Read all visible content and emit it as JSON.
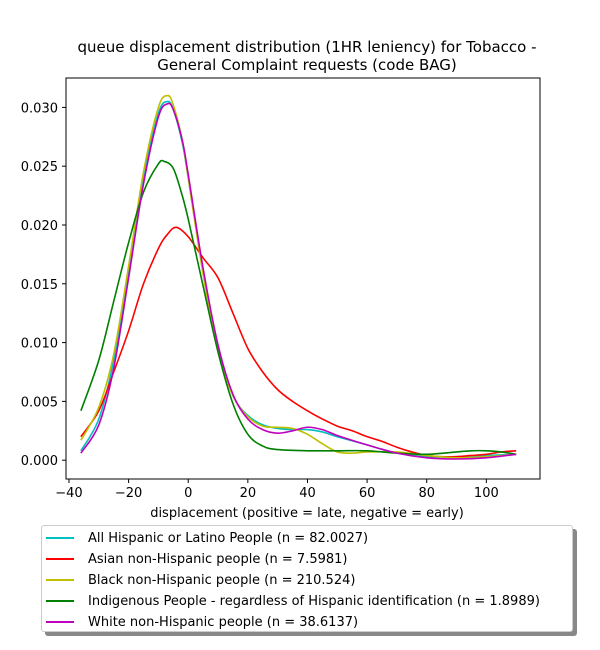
{
  "chart_data": {
    "type": "line",
    "title": "queue displacement distribution (1HR leniency) for Tobacco -\nGeneral Complaint  requests (code BAG)",
    "xlabel": "displacement (positive = late, negative = early)",
    "ylabel": "",
    "xlim": [
      -41,
      118
    ],
    "ylim": [
      -0.0016,
      0.0325
    ],
    "xticks": [
      -40,
      -20,
      0,
      20,
      40,
      60,
      80,
      100
    ],
    "yticks": [
      0.0,
      0.005,
      0.01,
      0.015,
      0.02,
      0.025,
      0.03
    ],
    "xtick_labels": [
      "−40",
      "−20",
      "0",
      "20",
      "40",
      "60",
      "80",
      "100"
    ],
    "ytick_labels": [
      "0.000",
      "0.005",
      "0.010",
      "0.015",
      "0.020",
      "0.025",
      "0.030"
    ],
    "grid": false,
    "legend_position": "below",
    "series": [
      {
        "name": "All Hispanic or Latino People (n = 82.0027)",
        "color": "#00bfbf",
        "points": [
          [
            -36,
            0.0008
          ],
          [
            -30,
            0.0035
          ],
          [
            -25,
            0.0085
          ],
          [
            -20,
            0.016
          ],
          [
            -15,
            0.024
          ],
          [
            -10,
            0.0295
          ],
          [
            -7,
            0.0305
          ],
          [
            -5,
            0.0298
          ],
          [
            -2,
            0.027
          ],
          [
            0,
            0.024
          ],
          [
            5,
            0.016
          ],
          [
            10,
            0.0095
          ],
          [
            15,
            0.0055
          ],
          [
            20,
            0.0038
          ],
          [
            25,
            0.003
          ],
          [
            30,
            0.0027
          ],
          [
            35,
            0.0026
          ],
          [
            40,
            0.0026
          ],
          [
            45,
            0.0024
          ],
          [
            50,
            0.002
          ],
          [
            60,
            0.0013
          ],
          [
            70,
            0.0006
          ],
          [
            80,
            0.0003
          ],
          [
            90,
            0.0003
          ],
          [
            100,
            0.0004
          ],
          [
            110,
            0.0005
          ]
        ]
      },
      {
        "name": "Asian non-Hispanic people (n = 7.5981)",
        "color": "#ff0000",
        "points": [
          [
            -36,
            0.002
          ],
          [
            -30,
            0.0042
          ],
          [
            -25,
            0.0075
          ],
          [
            -20,
            0.011
          ],
          [
            -15,
            0.015
          ],
          [
            -10,
            0.018
          ],
          [
            -7,
            0.0192
          ],
          [
            -4,
            0.0198
          ],
          [
            0,
            0.019
          ],
          [
            5,
            0.0172
          ],
          [
            10,
            0.0155
          ],
          [
            15,
            0.0125
          ],
          [
            20,
            0.0095
          ],
          [
            25,
            0.0075
          ],
          [
            30,
            0.006
          ],
          [
            35,
            0.005
          ],
          [
            40,
            0.0042
          ],
          [
            45,
            0.0035
          ],
          [
            50,
            0.0029
          ],
          [
            55,
            0.0025
          ],
          [
            60,
            0.002
          ],
          [
            65,
            0.0016
          ],
          [
            70,
            0.0011
          ],
          [
            75,
            0.0007
          ],
          [
            80,
            0.0004
          ],
          [
            85,
            0.0003
          ],
          [
            90,
            0.0003
          ],
          [
            95,
            0.0004
          ],
          [
            100,
            0.0005
          ],
          [
            105,
            0.0007
          ],
          [
            110,
            0.0008
          ]
        ]
      },
      {
        "name": "Black non-Hispanic people (n = 210.524)",
        "color": "#bfbf00",
        "points": [
          [
            -36,
            0.0017
          ],
          [
            -30,
            0.0045
          ],
          [
            -25,
            0.009
          ],
          [
            -20,
            0.0165
          ],
          [
            -15,
            0.0245
          ],
          [
            -10,
            0.03
          ],
          [
            -7,
            0.031
          ],
          [
            -5,
            0.0302
          ],
          [
            -2,
            0.0272
          ],
          [
            0,
            0.024
          ],
          [
            5,
            0.0158
          ],
          [
            10,
            0.0092
          ],
          [
            15,
            0.0055
          ],
          [
            20,
            0.0037
          ],
          [
            25,
            0.0029
          ],
          [
            30,
            0.0028
          ],
          [
            35,
            0.0027
          ],
          [
            40,
            0.0022
          ],
          [
            45,
            0.0014
          ],
          [
            50,
            0.0007
          ],
          [
            55,
            0.0006
          ],
          [
            60,
            0.0007
          ],
          [
            70,
            0.0007
          ],
          [
            80,
            0.0004
          ],
          [
            90,
            0.0002
          ],
          [
            100,
            0.0003
          ],
          [
            110,
            0.0005
          ]
        ]
      },
      {
        "name": "Indigenous People - regardless of Hispanic identification (n = 1.8989)",
        "color": "#008000",
        "points": [
          [
            -36,
            0.0042
          ],
          [
            -30,
            0.0085
          ],
          [
            -25,
            0.0135
          ],
          [
            -20,
            0.0185
          ],
          [
            -15,
            0.0228
          ],
          [
            -10,
            0.0252
          ],
          [
            -8,
            0.0254
          ],
          [
            -5,
            0.0248
          ],
          [
            -2,
            0.0225
          ],
          [
            0,
            0.0205
          ],
          [
            5,
            0.0148
          ],
          [
            10,
            0.0092
          ],
          [
            15,
            0.0048
          ],
          [
            20,
            0.0022
          ],
          [
            25,
            0.0012
          ],
          [
            30,
            0.0009
          ],
          [
            40,
            0.0008
          ],
          [
            50,
            0.0008
          ],
          [
            60,
            0.0008
          ],
          [
            70,
            0.0006
          ],
          [
            80,
            0.0005
          ],
          [
            90,
            0.0007
          ],
          [
            95,
            0.0008
          ],
          [
            100,
            0.0008
          ],
          [
            105,
            0.0007
          ],
          [
            110,
            0.0005
          ]
        ]
      },
      {
        "name": "White non-Hispanic people (n = 38.6137)",
        "color": "#bf00bf",
        "points": [
          [
            -36,
            0.0006
          ],
          [
            -30,
            0.003
          ],
          [
            -25,
            0.0078
          ],
          [
            -20,
            0.0155
          ],
          [
            -15,
            0.0235
          ],
          [
            -10,
            0.0292
          ],
          [
            -7,
            0.0303
          ],
          [
            -5,
            0.0298
          ],
          [
            -2,
            0.0272
          ],
          [
            0,
            0.0243
          ],
          [
            5,
            0.0163
          ],
          [
            10,
            0.0098
          ],
          [
            15,
            0.0056
          ],
          [
            20,
            0.0035
          ],
          [
            25,
            0.0026
          ],
          [
            30,
            0.0023
          ],
          [
            35,
            0.0025
          ],
          [
            40,
            0.0028
          ],
          [
            45,
            0.0026
          ],
          [
            50,
            0.0021
          ],
          [
            60,
            0.0013
          ],
          [
            70,
            0.0006
          ],
          [
            80,
            0.0002
          ],
          [
            90,
            0.0001
          ],
          [
            100,
            0.0002
          ],
          [
            110,
            0.0005
          ]
        ]
      }
    ]
  }
}
